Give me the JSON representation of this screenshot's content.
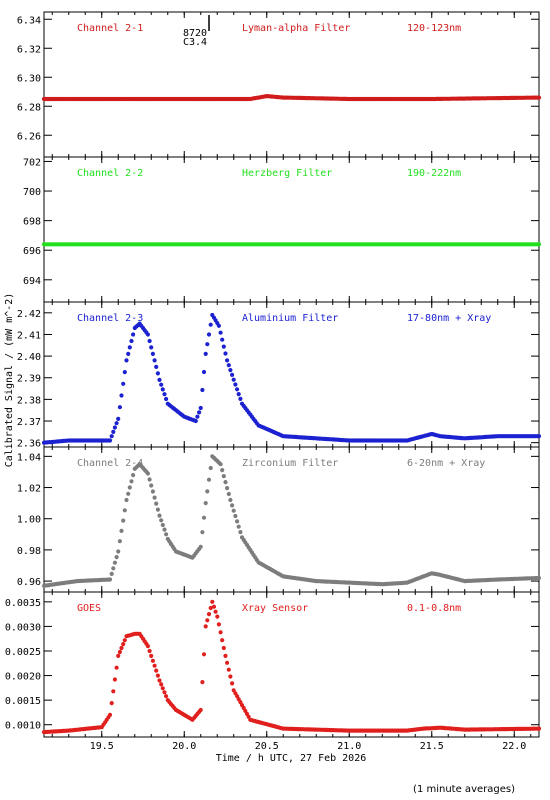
{
  "x_axis": {
    "label": "Time / h UTC, 27 Feb 2026",
    "range": [
      19.15,
      22.15
    ],
    "ticks": [
      19.5,
      20.0,
      20.5,
      21.0,
      21.5,
      22.0
    ],
    "tick_labels": [
      "19.5",
      "20.0",
      "20.5",
      "21.0",
      "21.5",
      "22.0"
    ]
  },
  "y_axis_label": "Calibrated Signal / (mW m^-2)",
  "footnote": "(1 minute averages)",
  "flare_marker": {
    "x": 20.15,
    "label_top": "8720",
    "label_bottom": "C3.4"
  },
  "chart_data": [
    {
      "type": "scatter",
      "channel": "Channel 2-1",
      "filter": "Lyman-alpha Filter",
      "band": "120-123nm",
      "color": "#d01c1c",
      "ylim": [
        6.245,
        6.345
      ],
      "yticks": [
        6.26,
        6.28,
        6.3,
        6.32,
        6.34
      ],
      "ytick_labels": [
        "6.26",
        "6.28",
        "6.30",
        "6.32",
        "6.34"
      ],
      "points": [
        [
          19.15,
          6.285
        ],
        [
          19.5,
          6.285
        ],
        [
          20.0,
          6.285
        ],
        [
          20.4,
          6.285
        ],
        [
          20.5,
          6.287
        ],
        [
          20.6,
          6.286
        ],
        [
          21.0,
          6.285
        ],
        [
          21.5,
          6.285
        ],
        [
          22.15,
          6.286
        ]
      ]
    },
    {
      "type": "scatter",
      "channel": "Channel 2-2",
      "filter": "Herzberg Filter",
      "band": "190-222nm",
      "color": "#22e01e",
      "ylim": [
        692.5,
        702.3
      ],
      "yticks": [
        694,
        696,
        698,
        700,
        702
      ],
      "ytick_labels": [
        "694",
        "696",
        "698",
        "700",
        "702"
      ],
      "points": [
        [
          19.15,
          696.4
        ],
        [
          20.0,
          696.4
        ],
        [
          21.0,
          696.4
        ],
        [
          22.15,
          696.4
        ]
      ]
    },
    {
      "type": "scatter",
      "channel": "Channel 2-3",
      "filter": "Aluminium Filter",
      "band": "17-80nm + Xray",
      "color": "#1c22d0",
      "ylim": [
        2.358,
        2.425
      ],
      "yticks": [
        2.36,
        2.37,
        2.38,
        2.39,
        2.4,
        2.41,
        2.42
      ],
      "ytick_labels": [
        "2.36",
        "2.37",
        "2.38",
        "2.39",
        "2.40",
        "2.41",
        "2.42"
      ],
      "points": [
        [
          19.15,
          2.36
        ],
        [
          19.3,
          2.361
        ],
        [
          19.55,
          2.361
        ],
        [
          19.6,
          2.371
        ],
        [
          19.65,
          2.398
        ],
        [
          19.7,
          2.413
        ],
        [
          19.73,
          2.415
        ],
        [
          19.78,
          2.41
        ],
        [
          19.85,
          2.389
        ],
        [
          19.9,
          2.378
        ],
        [
          20.0,
          2.372
        ],
        [
          20.07,
          2.37
        ],
        [
          20.1,
          2.376
        ],
        [
          20.13,
          2.401
        ],
        [
          20.17,
          2.419
        ],
        [
          20.21,
          2.414
        ],
        [
          20.26,
          2.398
        ],
        [
          20.35,
          2.378
        ],
        [
          20.45,
          2.368
        ],
        [
          20.6,
          2.363
        ],
        [
          20.8,
          2.362
        ],
        [
          21.0,
          2.361
        ],
        [
          21.2,
          2.361
        ],
        [
          21.35,
          2.361
        ],
        [
          21.45,
          2.363
        ],
        [
          21.5,
          2.364
        ],
        [
          21.55,
          2.363
        ],
        [
          21.7,
          2.362
        ],
        [
          21.9,
          2.363
        ],
        [
          22.15,
          2.363
        ]
      ]
    },
    {
      "type": "scatter",
      "channel": "Channel 2-4",
      "filter": "Zirconium Filter",
      "band": "6-20nm + Xray",
      "color": "#7d7d7d",
      "ylim": [
        0.953,
        1.046
      ],
      "yticks": [
        0.96,
        0.98,
        1.0,
        1.02,
        1.04
      ],
      "ytick_labels": [
        "0.96",
        "0.98",
        "1.00",
        "1.02",
        "1.04"
      ],
      "points": [
        [
          19.15,
          0.957
        ],
        [
          19.35,
          0.96
        ],
        [
          19.55,
          0.961
        ],
        [
          19.6,
          0.979
        ],
        [
          19.65,
          1.012
        ],
        [
          19.7,
          1.032
        ],
        [
          19.73,
          1.035
        ],
        [
          19.78,
          1.029
        ],
        [
          19.85,
          1.002
        ],
        [
          19.9,
          0.987
        ],
        [
          19.95,
          0.979
        ],
        [
          20.05,
          0.975
        ],
        [
          20.1,
          0.982
        ],
        [
          20.13,
          1.01
        ],
        [
          20.17,
          1.04
        ],
        [
          20.22,
          1.035
        ],
        [
          20.28,
          1.012
        ],
        [
          20.35,
          0.988
        ],
        [
          20.45,
          0.972
        ],
        [
          20.6,
          0.963
        ],
        [
          20.8,
          0.96
        ],
        [
          21.0,
          0.959
        ],
        [
          21.2,
          0.958
        ],
        [
          21.35,
          0.959
        ],
        [
          21.45,
          0.963
        ],
        [
          21.5,
          0.965
        ],
        [
          21.55,
          0.964
        ],
        [
          21.7,
          0.96
        ],
        [
          21.9,
          0.961
        ],
        [
          22.15,
          0.962
        ]
      ]
    },
    {
      "type": "scatter",
      "channel": "GOES",
      "filter": "Xray Sensor",
      "band": "0.1-0.8nm",
      "color": "#e0201e",
      "ylim": [
        0.00075,
        0.0037
      ],
      "yticks": [
        0.001,
        0.0015,
        0.002,
        0.0025,
        0.003,
        0.0035
      ],
      "ytick_labels": [
        "0.0010",
        "0.0015",
        "0.0020",
        "0.0025",
        "0.0030",
        "0.0035"
      ],
      "points": [
        [
          19.15,
          0.00085
        ],
        [
          19.3,
          0.00088
        ],
        [
          19.5,
          0.00095
        ],
        [
          19.55,
          0.0012
        ],
        [
          19.6,
          0.0024
        ],
        [
          19.65,
          0.0028
        ],
        [
          19.7,
          0.00285
        ],
        [
          19.73,
          0.00285
        ],
        [
          19.78,
          0.0026
        ],
        [
          19.85,
          0.0019
        ],
        [
          19.9,
          0.0015
        ],
        [
          19.95,
          0.0013
        ],
        [
          20.05,
          0.0011
        ],
        [
          20.1,
          0.0013
        ],
        [
          20.13,
          0.003
        ],
        [
          20.17,
          0.0035
        ],
        [
          20.2,
          0.0032
        ],
        [
          20.25,
          0.0024
        ],
        [
          20.3,
          0.0017
        ],
        [
          20.4,
          0.0011
        ],
        [
          20.6,
          0.00092
        ],
        [
          21.0,
          0.00088
        ],
        [
          21.35,
          0.00088
        ],
        [
          21.45,
          0.00092
        ],
        [
          21.55,
          0.00094
        ],
        [
          21.7,
          0.0009
        ],
        [
          22.15,
          0.00092
        ]
      ]
    }
  ]
}
